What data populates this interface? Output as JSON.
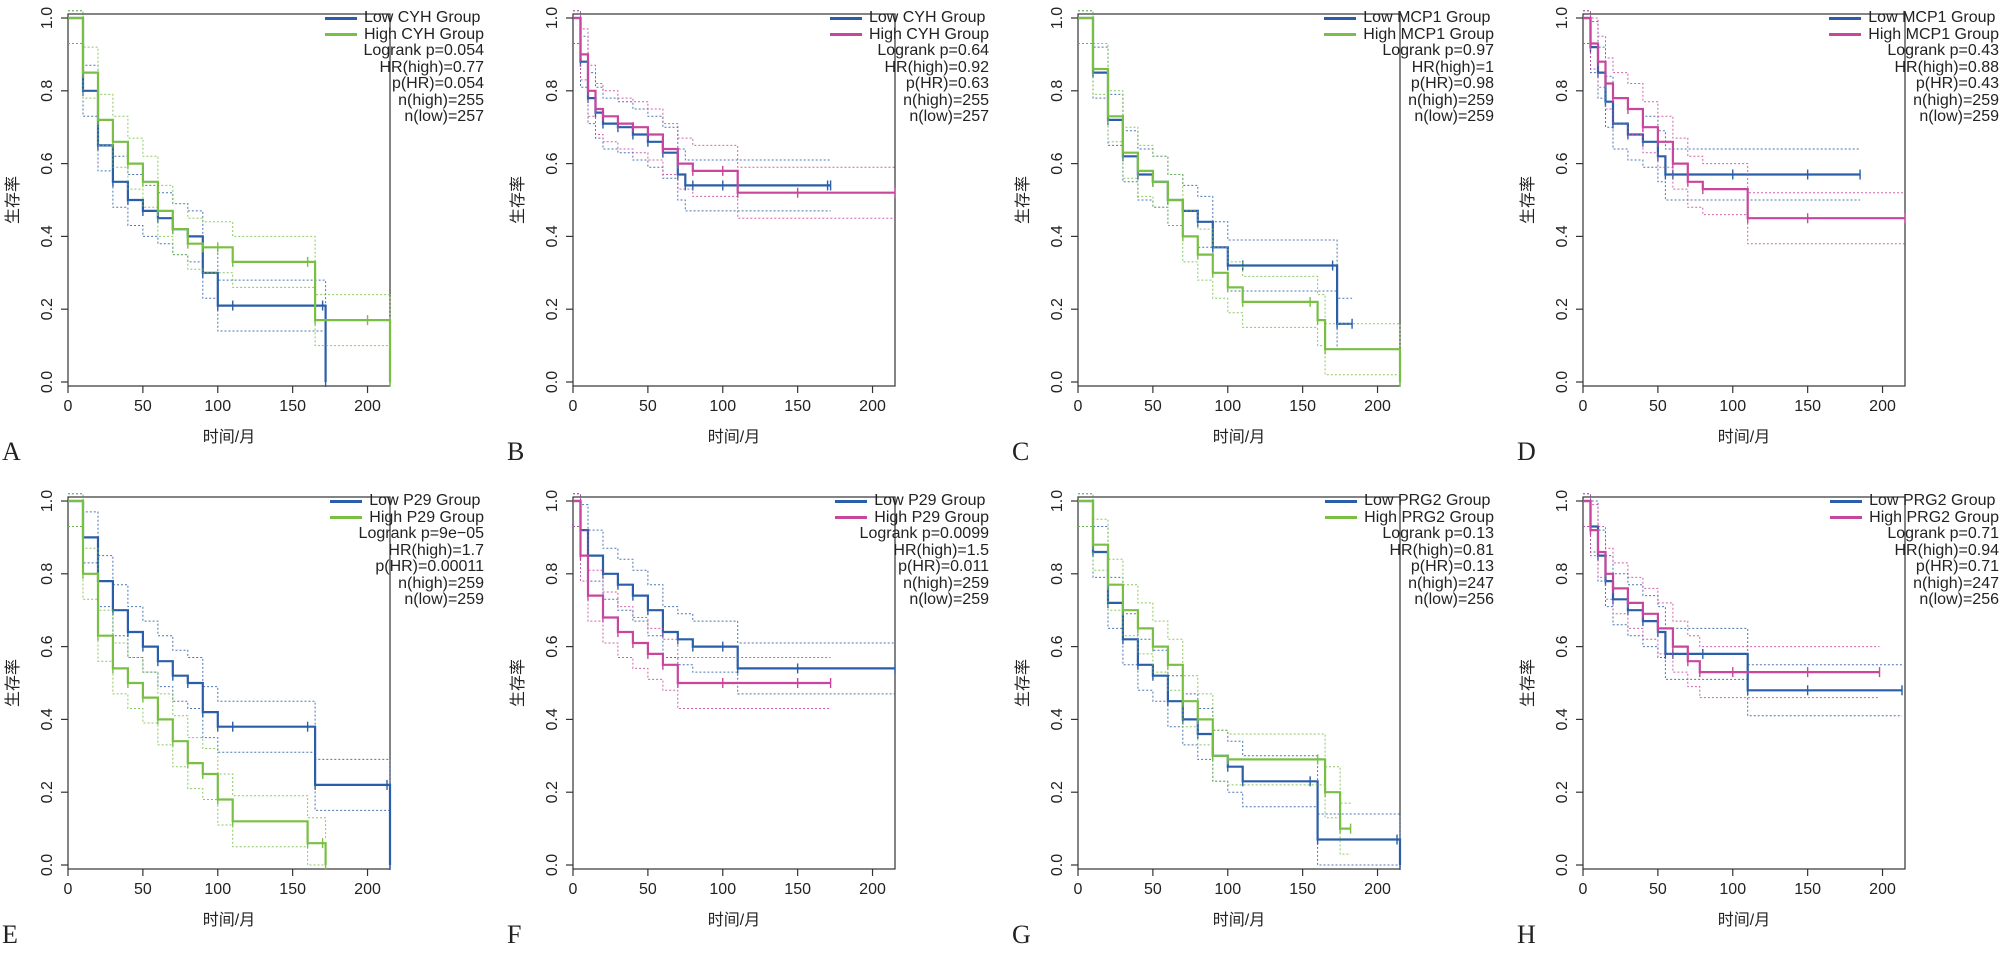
{
  "colors": {
    "low": "#2a5ea8",
    "high_green": "#78bf44",
    "high_pink": "#c8469c",
    "axis": "#333333"
  },
  "axes": {
    "xlabel": "时间/月",
    "ylabel": "生存率",
    "x_ticks": [
      "0",
      "50",
      "100",
      "150",
      "200"
    ],
    "y_ticks": [
      "0.0",
      "0.2",
      "0.4",
      "0.6",
      "0.8",
      "1.0"
    ]
  },
  "panels": [
    {
      "letter": "A",
      "legend": {
        "low": "Low CYH Group",
        "high": "High CYH Group",
        "stats": [
          "Logrank p=0.054",
          "HR(high)=0.77",
          "p(HR)=0.054",
          "n(high)=255",
          "n(low)=257"
        ]
      }
    },
    {
      "letter": "B",
      "legend": {
        "low": "Low CYH Group",
        "high": "High CYH Group",
        "stats": [
          "Logrank p=0.64",
          "HR(high)=0.92",
          "p(HR)=0.63",
          "n(high)=255",
          "n(low)=257"
        ]
      }
    },
    {
      "letter": "C",
      "legend": {
        "low": "Low MCP1 Group",
        "high": "High MCP1 Group",
        "stats": [
          "Logrank p=0.97",
          "HR(high)=1",
          "p(HR)=0.98",
          "n(high)=259",
          "n(low)=259"
        ]
      }
    },
    {
      "letter": "D",
      "legend": {
        "low": "Low MCP1 Group",
        "high": "High MCP1 Group",
        "stats": [
          "Logrank p=0.43",
          "HR(high)=0.88",
          "p(HR)=0.43",
          "n(high)=259",
          "n(low)=259"
        ]
      }
    },
    {
      "letter": "E",
      "legend": {
        "low": "Low P29 Group",
        "high": "High P29 Group",
        "stats": [
          "Logrank p=9e−05",
          "HR(high)=1.7",
          "p(HR)=0.00011",
          "n(high)=259",
          "n(low)=259"
        ]
      }
    },
    {
      "letter": "F",
      "legend": {
        "low": "Low P29 Group",
        "high": "High P29 Group",
        "stats": [
          "Logrank p=0.0099",
          "HR(high)=1.5",
          "p(HR)=0.011",
          "n(high)=259",
          "n(low)=259"
        ]
      }
    },
    {
      "letter": "G",
      "legend": {
        "low": "Low PRG2 Group",
        "high": "High PRG2 Group",
        "stats": [
          "Logrank p=0.13",
          "HR(high)=0.81",
          "p(HR)=0.13",
          "n(high)=247",
          "n(low)=256"
        ]
      }
    },
    {
      "letter": "H",
      "legend": {
        "low": "Low PRG2 Group",
        "high": "High PRG2 Group",
        "stats": [
          "Logrank p=0.71",
          "HR(high)=0.94",
          "p(HR)=0.71",
          "n(high)=247",
          "n(low)=256"
        ]
      }
    }
  ],
  "chart_data": [
    {
      "type": "line",
      "panel": "A",
      "xlabel": "时间/月",
      "ylabel": "生存率",
      "xlim": [
        0,
        215
      ],
      "ylim": [
        0,
        1
      ],
      "high_color": "green",
      "series": [
        {
          "name": "Low CYH Group",
          "x": [
            0,
            10,
            20,
            30,
            40,
            50,
            60,
            70,
            80,
            90,
            100,
            110,
            170,
            172
          ],
          "y": [
            1,
            0.8,
            0.65,
            0.55,
            0.5,
            0.47,
            0.45,
            0.42,
            0.4,
            0.3,
            0.21,
            0.21,
            0.21,
            0
          ]
        },
        {
          "name": "High CYH Group",
          "x": [
            0,
            10,
            20,
            30,
            40,
            50,
            60,
            70,
            80,
            90,
            100,
            110,
            160,
            165,
            200,
            215
          ],
          "y": [
            1,
            0.85,
            0.72,
            0.66,
            0.6,
            0.55,
            0.47,
            0.42,
            0.38,
            0.37,
            0.37,
            0.33,
            0.33,
            0.17,
            0.17,
            0
          ]
        }
      ]
    },
    {
      "type": "line",
      "panel": "B",
      "xlabel": "时间/月",
      "ylabel": "生存率",
      "xlim": [
        0,
        215
      ],
      "ylim": [
        0,
        1
      ],
      "high_color": "pink",
      "series": [
        {
          "name": "Low CYH Group",
          "x": [
            0,
            5,
            10,
            15,
            20,
            30,
            40,
            50,
            60,
            70,
            75,
            80,
            100,
            170,
            172
          ],
          "y": [
            1,
            0.88,
            0.78,
            0.74,
            0.71,
            0.7,
            0.68,
            0.66,
            0.63,
            0.57,
            0.54,
            0.54,
            0.54,
            0.54,
            0.54
          ]
        },
        {
          "name": "High CYH Group",
          "x": [
            0,
            5,
            10,
            15,
            20,
            30,
            40,
            50,
            60,
            70,
            80,
            100,
            110,
            150,
            215
          ],
          "y": [
            1,
            0.9,
            0.8,
            0.75,
            0.73,
            0.71,
            0.7,
            0.68,
            0.64,
            0.6,
            0.58,
            0.58,
            0.52,
            0.52,
            0.52
          ]
        }
      ]
    },
    {
      "type": "line",
      "panel": "C",
      "xlabel": "时间/月",
      "ylabel": "生存率",
      "xlim": [
        0,
        215
      ],
      "ylim": [
        0,
        1
      ],
      "high_color": "green",
      "series": [
        {
          "name": "Low MCP1 Group",
          "x": [
            0,
            10,
            20,
            30,
            40,
            50,
            60,
            70,
            80,
            90,
            100,
            110,
            170,
            173,
            183
          ],
          "y": [
            1,
            0.85,
            0.72,
            0.62,
            0.57,
            0.55,
            0.5,
            0.47,
            0.44,
            0.37,
            0.32,
            0.32,
            0.32,
            0.16,
            0.16
          ]
        },
        {
          "name": "High MCP1 Group",
          "x": [
            0,
            10,
            20,
            30,
            40,
            50,
            60,
            70,
            80,
            90,
            100,
            110,
            155,
            160,
            165,
            215
          ],
          "y": [
            1,
            0.86,
            0.73,
            0.63,
            0.58,
            0.55,
            0.5,
            0.4,
            0.35,
            0.3,
            0.26,
            0.22,
            0.22,
            0.17,
            0.09,
            0
          ]
        }
      ]
    },
    {
      "type": "line",
      "panel": "D",
      "xlabel": "时间/月",
      "ylabel": "生存率",
      "xlim": [
        0,
        215
      ],
      "ylim": [
        0,
        1
      ],
      "high_color": "pink",
      "series": [
        {
          "name": "Low MCP1 Group",
          "x": [
            0,
            5,
            10,
            15,
            20,
            30,
            40,
            50,
            55,
            60,
            100,
            150,
            185
          ],
          "y": [
            1,
            0.92,
            0.85,
            0.77,
            0.71,
            0.68,
            0.66,
            0.62,
            0.57,
            0.57,
            0.57,
            0.57,
            0.57
          ]
        },
        {
          "name": "High MCP1 Group",
          "x": [
            0,
            5,
            10,
            15,
            20,
            30,
            40,
            50,
            60,
            70,
            80,
            110,
            150,
            215
          ],
          "y": [
            1,
            0.93,
            0.88,
            0.82,
            0.78,
            0.75,
            0.7,
            0.66,
            0.6,
            0.55,
            0.53,
            0.45,
            0.45,
            0.45
          ]
        }
      ]
    },
    {
      "type": "line",
      "panel": "E",
      "xlabel": "时间/月",
      "ylabel": "生存率",
      "xlim": [
        0,
        215
      ],
      "ylim": [
        0,
        1
      ],
      "high_color": "green",
      "series": [
        {
          "name": "Low P29 Group",
          "x": [
            0,
            10,
            20,
            30,
            40,
            50,
            60,
            70,
            80,
            90,
            100,
            110,
            160,
            165,
            213,
            215
          ],
          "y": [
            1,
            0.9,
            0.78,
            0.7,
            0.64,
            0.6,
            0.56,
            0.52,
            0.5,
            0.42,
            0.38,
            0.38,
            0.38,
            0.22,
            0.22,
            0
          ]
        },
        {
          "name": "High P29 Group",
          "x": [
            0,
            10,
            20,
            30,
            40,
            50,
            60,
            70,
            80,
            90,
            100,
            110,
            160,
            170,
            172
          ],
          "y": [
            1,
            0.8,
            0.63,
            0.54,
            0.5,
            0.46,
            0.4,
            0.34,
            0.28,
            0.25,
            0.18,
            0.12,
            0.06,
            0.06,
            0
          ]
        }
      ]
    },
    {
      "type": "line",
      "panel": "F",
      "xlabel": "时间/月",
      "ylabel": "生存率",
      "xlim": [
        0,
        215
      ],
      "ylim": [
        0,
        1
      ],
      "high_color": "pink",
      "series": [
        {
          "name": "Low P29 Group",
          "x": [
            0,
            5,
            10,
            20,
            30,
            40,
            50,
            60,
            70,
            80,
            100,
            110,
            150,
            215
          ],
          "y": [
            1,
            0.92,
            0.85,
            0.8,
            0.77,
            0.74,
            0.7,
            0.64,
            0.62,
            0.6,
            0.6,
            0.54,
            0.54,
            0.54
          ]
        },
        {
          "name": "High P29 Group",
          "x": [
            0,
            5,
            10,
            20,
            30,
            40,
            50,
            60,
            70,
            100,
            150,
            172
          ],
          "y": [
            1,
            0.85,
            0.74,
            0.68,
            0.64,
            0.61,
            0.58,
            0.55,
            0.5,
            0.5,
            0.5,
            0.5
          ]
        }
      ]
    },
    {
      "type": "line",
      "panel": "G",
      "xlabel": "时间/月",
      "ylabel": "生存率",
      "xlim": [
        0,
        215
      ],
      "ylim": [
        0,
        1
      ],
      "high_color": "green",
      "series": [
        {
          "name": "Low PRG2 Group",
          "x": [
            0,
            10,
            20,
            30,
            40,
            50,
            60,
            70,
            80,
            90,
            100,
            110,
            155,
            160,
            213,
            215
          ],
          "y": [
            1,
            0.86,
            0.72,
            0.62,
            0.55,
            0.52,
            0.45,
            0.4,
            0.36,
            0.3,
            0.27,
            0.23,
            0.23,
            0.07,
            0.07,
            0
          ]
        },
        {
          "name": "High PRG2 Group",
          "x": [
            0,
            10,
            20,
            30,
            40,
            50,
            60,
            70,
            80,
            90,
            100,
            160,
            165,
            175,
            182
          ],
          "y": [
            1,
            0.88,
            0.77,
            0.7,
            0.65,
            0.6,
            0.55,
            0.45,
            0.4,
            0.3,
            0.29,
            0.29,
            0.2,
            0.1,
            0.1
          ]
        }
      ]
    },
    {
      "type": "line",
      "panel": "H",
      "xlabel": "时间/月",
      "ylabel": "生存率",
      "xlim": [
        0,
        215
      ],
      "ylim": [
        0,
        1
      ],
      "high_color": "pink",
      "series": [
        {
          "name": "Low PRG2 Group",
          "x": [
            0,
            5,
            10,
            15,
            20,
            30,
            40,
            50,
            55,
            60,
            80,
            110,
            150,
            213
          ],
          "y": [
            1,
            0.93,
            0.85,
            0.78,
            0.73,
            0.7,
            0.67,
            0.64,
            0.58,
            0.58,
            0.58,
            0.48,
            0.48,
            0.48
          ]
        },
        {
          "name": "High PRG2 Group",
          "x": [
            0,
            5,
            10,
            15,
            20,
            30,
            40,
            50,
            60,
            70,
            78,
            100,
            150,
            198
          ],
          "y": [
            1,
            0.92,
            0.86,
            0.8,
            0.76,
            0.72,
            0.69,
            0.65,
            0.6,
            0.56,
            0.53,
            0.53,
            0.53,
            0.53
          ]
        }
      ]
    }
  ]
}
